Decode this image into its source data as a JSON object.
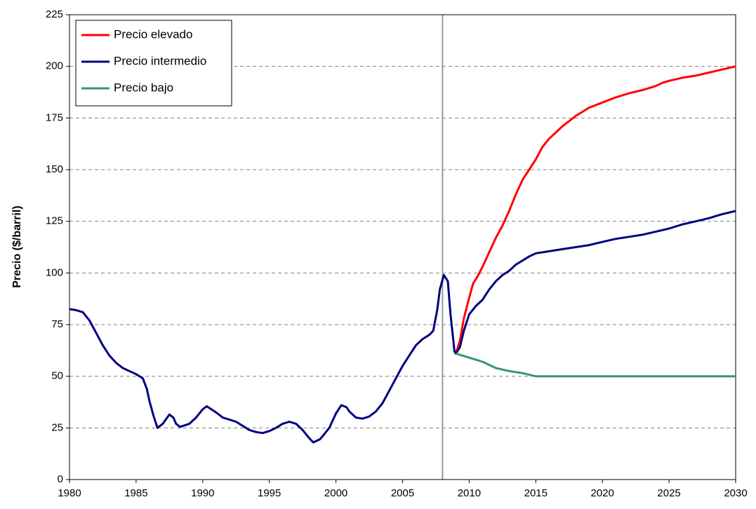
{
  "chart_data": {
    "type": "line",
    "y_label": "Precio ($/barril)",
    "xlim": [
      1980,
      2030
    ],
    "xticks": [
      1980,
      1985,
      1990,
      1995,
      2000,
      2005,
      2010,
      2015,
      2020,
      2025,
      2030
    ],
    "ylim": [
      0,
      225
    ],
    "yticks": [
      0,
      25,
      50,
      75,
      100,
      125,
      150,
      175,
      200,
      225
    ],
    "grid": true,
    "legend": "upper-left",
    "vline": 2008,
    "vline_color": "#999999",
    "series": [
      {
        "name": "Precio elevado",
        "color": "#ff0000",
        "x": [
          2009,
          2009.3,
          2009.6,
          2010,
          2010.3,
          2010.6,
          2011,
          2011.5,
          2012,
          2012.5,
          2013,
          2013.5,
          2014,
          2014.5,
          2015,
          2015.5,
          2016,
          2017,
          2018,
          2019,
          2020,
          2021,
          2022,
          2023,
          2024,
          2024.5,
          2025,
          2026,
          2027,
          2028,
          2029,
          2030
        ],
        "values": [
          61,
          67,
          78,
          88,
          95,
          98,
          103,
          110,
          117,
          123,
          130,
          138,
          145,
          150,
          155,
          161,
          165,
          171,
          176,
          180,
          182.5,
          185,
          187,
          188.5,
          190.5,
          192,
          193,
          194.5,
          195.5,
          197,
          198.5,
          200
        ]
      },
      {
        "name": "Precio intermedio",
        "color": "#000080",
        "x": [
          1980,
          1980.5,
          1981,
          1981.5,
          1982,
          1982.5,
          1983,
          1983.5,
          1984,
          1984.5,
          1985,
          1985.5,
          1985.8,
          1986,
          1986.3,
          1986.6,
          1987,
          1987.5,
          1987.8,
          1988,
          1988.3,
          1989,
          1989.5,
          1990,
          1990.3,
          1991,
          1991.5,
          1992,
          1992.5,
          1993,
          1993.5,
          1994,
          1994.5,
          1995,
          1995.5,
          1996,
          1996.5,
          1997,
          1997.5,
          1998,
          1998.3,
          1998.8,
          1999,
          1999.5,
          2000,
          2000.4,
          2000.8,
          2001,
          2001.5,
          2002,
          2002.5,
          2003,
          2003.5,
          2004,
          2004.5,
          2005,
          2005.5,
          2006,
          2006.5,
          2007,
          2007.3,
          2007.6,
          2007.8,
          2008.1,
          2008.4,
          2008.6,
          2008.9,
          2009,
          2009.3,
          2009.6,
          2010,
          2010.5,
          2011,
          2011.5,
          2012,
          2012.5,
          2013,
          2013.5,
          2014,
          2014.5,
          2015,
          2016,
          2017,
          2018,
          2019,
          2020,
          2021,
          2022,
          2023,
          2024,
          2025,
          2026,
          2027,
          2028,
          2029,
          2030
        ],
        "values": [
          82.5,
          82,
          81,
          77,
          71,
          65,
          60,
          56.5,
          54,
          52.5,
          51,
          49,
          44,
          38,
          31,
          25,
          27,
          31.5,
          30,
          27,
          25.5,
          27,
          30,
          34,
          35.5,
          32.5,
          30,
          29,
          28,
          26,
          24,
          23,
          22.5,
          23.5,
          25,
          27,
          28,
          27,
          24,
          20,
          18,
          19.5,
          21,
          25,
          32,
          36,
          35,
          33,
          30,
          29.5,
          30.5,
          33,
          37,
          43,
          49,
          55,
          60,
          65,
          68,
          70,
          72,
          82,
          92,
          99,
          96,
          80,
          62,
          61,
          64,
          72,
          80,
          84,
          87,
          92,
          96,
          99,
          101,
          104,
          106,
          108,
          109.5,
          110.5,
          111.5,
          112.5,
          113.5,
          115,
          116.5,
          117.5,
          118.5,
          120,
          121.5,
          123.5,
          125,
          126.5,
          128.5,
          130
        ]
      },
      {
        "name": "Precio bajo",
        "color": "#339966",
        "x": [
          2009,
          2010,
          2011,
          2012,
          2013,
          2014,
          2015,
          2030
        ],
        "values": [
          61,
          59,
          57,
          54,
          52.5,
          51.5,
          50,
          50
        ]
      }
    ]
  }
}
